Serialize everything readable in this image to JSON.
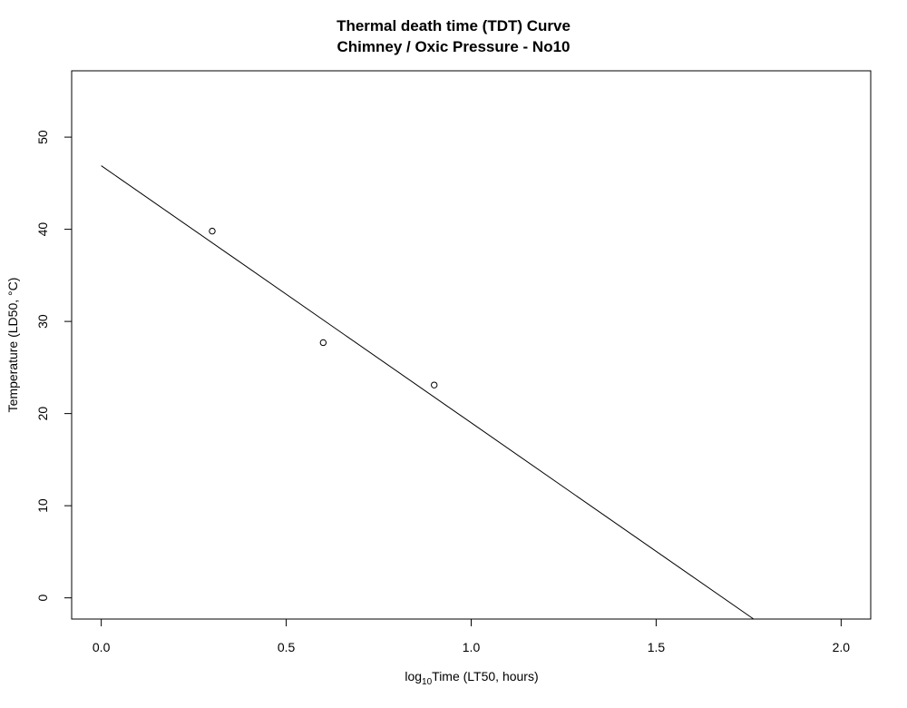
{
  "chart_data": {
    "type": "scatter",
    "title": "Thermal death time (TDT) Curve",
    "subtitle": "Chimney / Oxic Pressure - No10",
    "xlabel_prefix": "log",
    "xlabel_sub": "10",
    "xlabel_suffix": "Time (LT50, hours)",
    "ylabel": "Temperature (LD50, °C)",
    "xlim": [
      -0.08,
      2.08
    ],
    "ylim": [
      -2.3,
      57.2
    ],
    "x_ticks": [
      0.0,
      0.5,
      1.0,
      1.5,
      2.0
    ],
    "x_tick_labels": [
      "0.0",
      "0.5",
      "1.0",
      "1.5",
      "2.0"
    ],
    "y_ticks": [
      0,
      10,
      20,
      30,
      40,
      50
    ],
    "y_tick_labels": [
      "0",
      "10",
      "20",
      "30",
      "40",
      "50"
    ],
    "points": [
      {
        "x": 0.3,
        "y": 39.8
      },
      {
        "x": 0.6,
        "y": 27.7
      },
      {
        "x": 0.9,
        "y": 23.1
      }
    ],
    "fit_line": {
      "intercept": 46.9,
      "slope": -27.9
    },
    "grid": false,
    "legend": "none",
    "colors": {
      "axis": "#000000",
      "points": "#000000",
      "line": "#000000"
    }
  }
}
